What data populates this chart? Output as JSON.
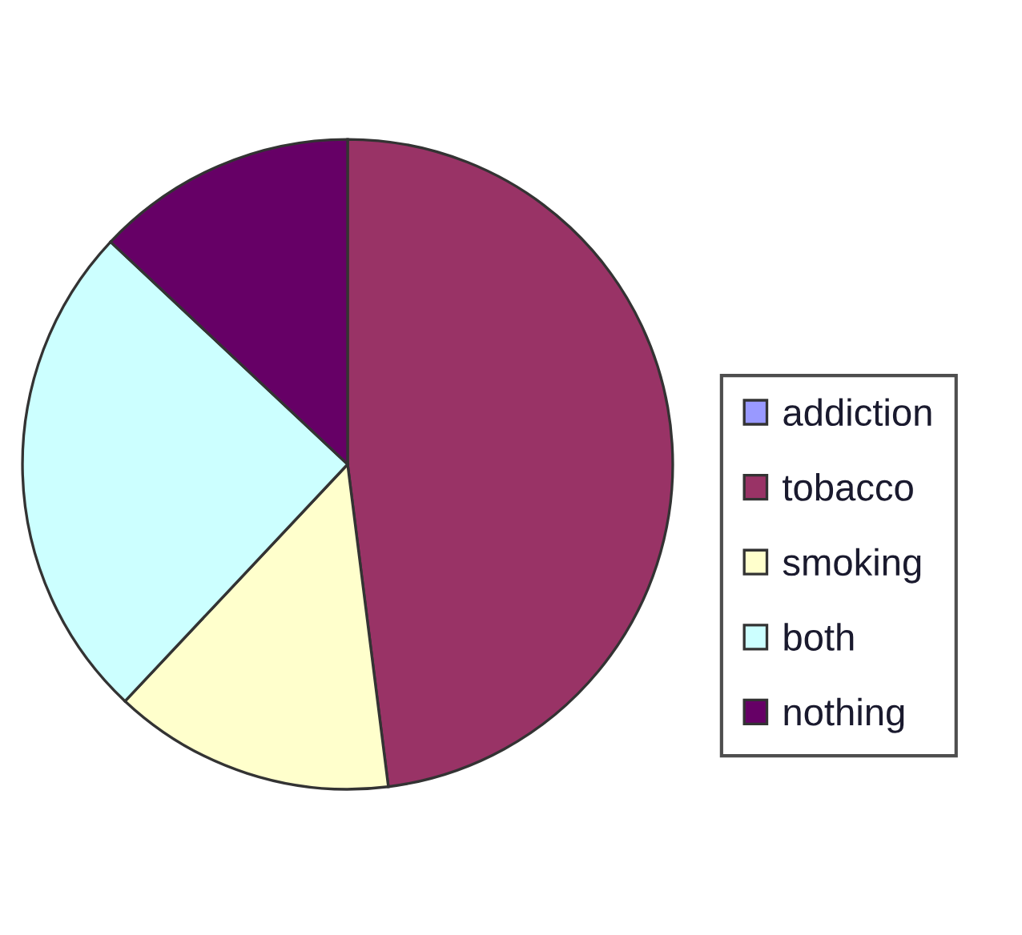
{
  "chart_data": {
    "type": "pie",
    "categories": [
      "addiction",
      "tobacco",
      "smoking",
      "both",
      "nothing"
    ],
    "values": [
      0,
      48,
      14,
      25,
      13
    ],
    "colors": [
      "#9999ff",
      "#993366",
      "#ffffcc",
      "#ccffff",
      "#660066"
    ],
    "legend": "right"
  }
}
